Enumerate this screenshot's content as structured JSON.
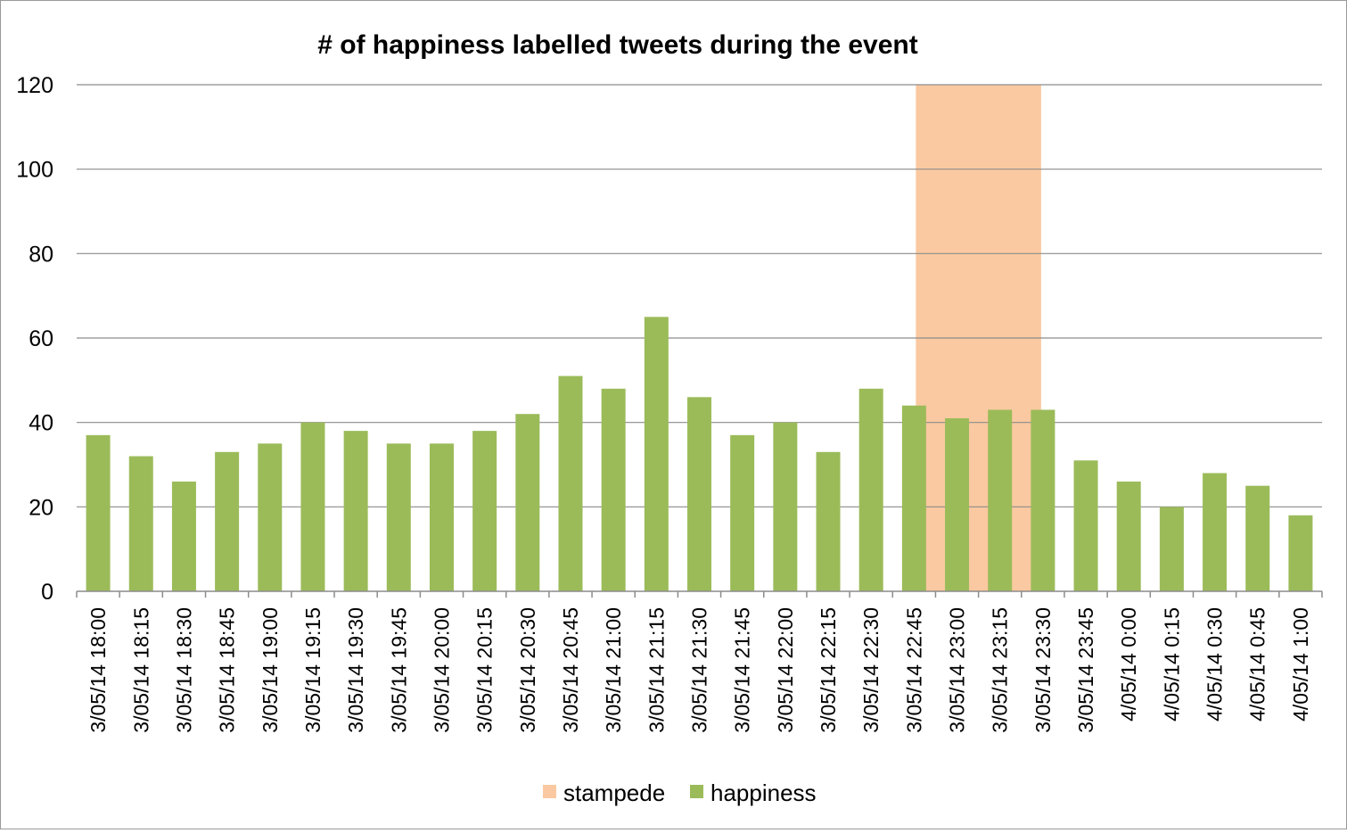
{
  "chart_data": {
    "type": "bar",
    "title": "# of happiness labelled tweets during the event",
    "xlabel": "",
    "ylabel": "",
    "ylim": [
      0,
      120
    ],
    "yticks": [
      0,
      20,
      40,
      60,
      80,
      100,
      120
    ],
    "grid": true,
    "legend_position": "bottom",
    "categories": [
      "3/05/14 18:00",
      "3/05/14 18:15",
      "3/05/14 18:30",
      "3/05/14 18:45",
      "3/05/14 19:00",
      "3/05/14 19:15",
      "3/05/14 19:30",
      "3/05/14 19:45",
      "3/05/14 20:00",
      "3/05/14 20:15",
      "3/05/14 20:30",
      "3/05/14 20:45",
      "3/05/14 21:00",
      "3/05/14 21:15",
      "3/05/14 21:30",
      "3/05/14 21:45",
      "3/05/14 22:00",
      "3/05/14 22:15",
      "3/05/14 22:30",
      "3/05/14 22:45",
      "3/05/14 23:00",
      "3/05/14 23:15",
      "3/05/14 23:30",
      "3/05/14 23:45",
      "4/05/14 0:00",
      "4/05/14 0:15",
      "4/05/14 0:30",
      "4/05/14 0:45",
      "4/05/14 1:00"
    ],
    "series": [
      {
        "name": "happiness",
        "color": "#9bbb59",
        "values": [
          37,
          32,
          26,
          33,
          35,
          40,
          38,
          35,
          35,
          38,
          42,
          51,
          48,
          65,
          46,
          37,
          40,
          33,
          48,
          44,
          41,
          43,
          43,
          31,
          26,
          20,
          28,
          25,
          18
        ]
      }
    ],
    "highlight": {
      "name": "stampede",
      "color": "#fac9a1",
      "from": "3/05/14 22:45",
      "to": "3/05/14 23:30",
      "value": 120
    }
  }
}
